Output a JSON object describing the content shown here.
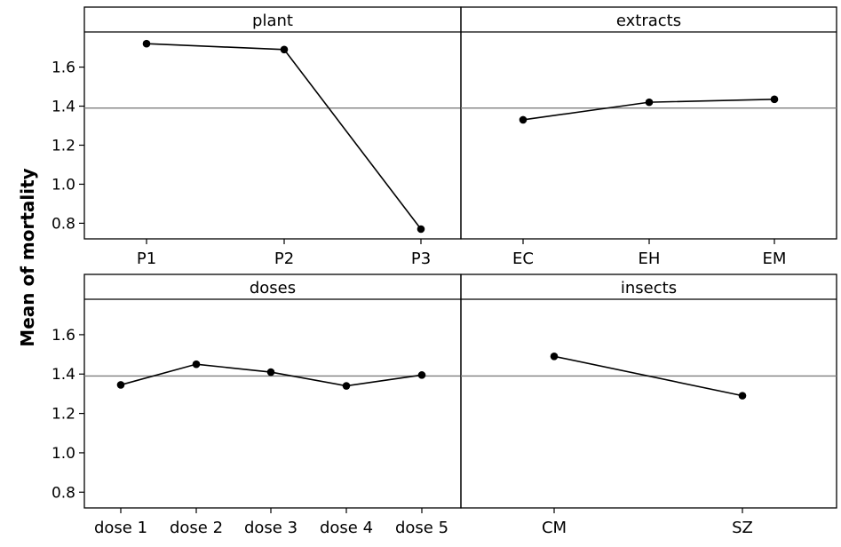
{
  "chart_data": {
    "type": "line",
    "ylabel": "Mean of mortality",
    "ylim": [
      0.72,
      1.78
    ],
    "yticks": [
      0.8,
      1.0,
      1.2,
      1.4,
      1.6
    ],
    "reference_line": 1.39,
    "panels": [
      {
        "title": "plant",
        "categories": [
          "P1",
          "P2",
          "P3"
        ],
        "values": [
          1.72,
          1.69,
          0.77
        ]
      },
      {
        "title": "extracts",
        "categories": [
          "EC",
          "EH",
          "EM"
        ],
        "values": [
          1.33,
          1.42,
          1.435
        ]
      },
      {
        "title": "doses",
        "categories": [
          "dose 1",
          "dose 2",
          "dose 3",
          "dose 4",
          "dose 5"
        ],
        "values": [
          1.345,
          1.45,
          1.41,
          1.34,
          1.395
        ]
      },
      {
        "title": "insects",
        "categories": [
          "CM",
          "SZ"
        ],
        "values": [
          1.49,
          1.29
        ]
      }
    ]
  }
}
